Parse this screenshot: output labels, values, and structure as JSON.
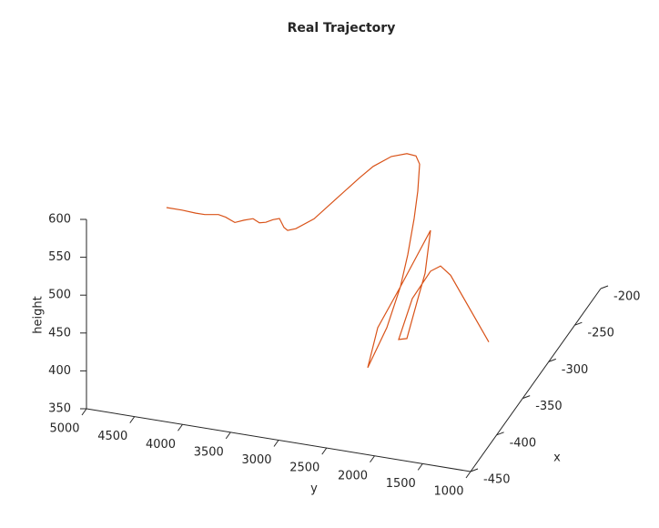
{
  "chart_data": {
    "type": "line3d",
    "title": "Real Trajectory",
    "xlabel": "x",
    "ylabel": "y",
    "zlabel": "height",
    "x": [
      -375,
      -375,
      -375,
      -375,
      -375,
      -375,
      -375,
      -375,
      -375,
      -375,
      -375,
      -375,
      -375,
      -375,
      -375,
      -375,
      -375,
      -375,
      -375,
      -375,
      -375,
      -375,
      -375,
      -375,
      -375,
      -375,
      -375,
      -375,
      -375,
      -375,
      -375,
      -375,
      -375,
      -375,
      -375,
      -375,
      -375,
      -375,
      -375,
      -375,
      -375,
      -375
    ],
    "y": [
      4573,
      4411,
      4269,
      4174,
      4032,
      3956,
      3862,
      3767,
      3672,
      3606,
      3539,
      3464,
      3397,
      3350,
      3312,
      3227,
      3037,
      2800,
      2563,
      2421,
      2231,
      2070,
      1975,
      1937,
      1956,
      1994,
      2061,
      2137,
      2279,
      2478,
      2373,
      2137,
      1824,
      1881,
      1947,
      2070,
      2155,
      2013,
      1824,
      1719,
      1615,
      1217
    ],
    "z": [
      552,
      552,
      551,
      551,
      554,
      552,
      547,
      552,
      556,
      552,
      554,
      559,
      562,
      551,
      548,
      552,
      569,
      601,
      633,
      651,
      668,
      675,
      674,
      664,
      628,
      591,
      542,
      498,
      441,
      384,
      439,
      498,
      579,
      521,
      490,
      431,
      428,
      485,
      525,
      534,
      524,
      444
    ],
    "color": "#d95319",
    "xlim": [
      -450,
      -200
    ],
    "ylim": [
      1000,
      5000
    ],
    "zlim": [
      350,
      600
    ],
    "xticks": [
      -450,
      -400,
      -350,
      -300,
      -250,
      -200
    ],
    "yticks": [
      1000,
      1500,
      2000,
      2500,
      3000,
      3500,
      4000,
      4500,
      5000
    ],
    "zticks": [
      350,
      400,
      450,
      500,
      550,
      600
    ]
  }
}
